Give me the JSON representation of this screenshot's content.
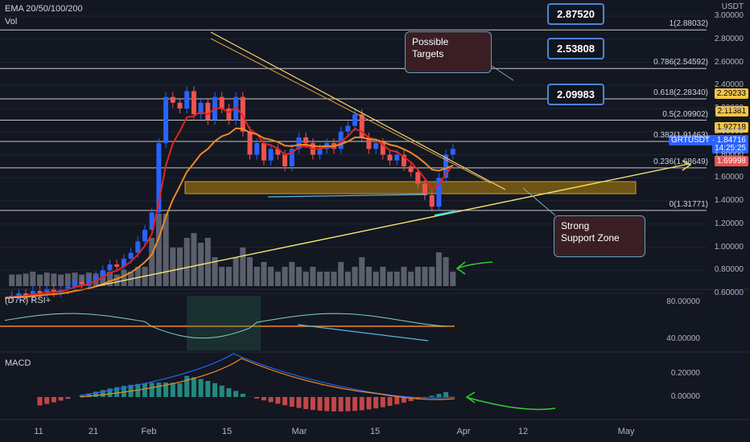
{
  "chart_data": [
    {
      "type": "candlestick",
      "pair": "GRTUSDT",
      "indicator_labels": [
        "EMA 20/50/100/200",
        "Vol"
      ],
      "price_unit": "USDT",
      "price_axis_ticks": [
        "3.00000",
        "2.80000",
        "2.60000",
        "2.40000",
        "2.20000",
        "2.00000",
        "1.80000",
        "1.60000",
        "1.40000",
        "1.20000",
        "1.00000",
        "0.80000",
        "0.60000"
      ],
      "x_axis_ticks": [
        "11",
        "21",
        "Feb",
        "15",
        "Mar",
        "15",
        "Apr",
        "12",
        "May"
      ],
      "fib_levels": [
        {
          "label": "1(2.88032)",
          "value": 2.88032
        },
        {
          "label": "0.786(2.54592)",
          "value": 2.54592
        },
        {
          "label": "0.618(2.28340)",
          "value": 2.2834
        },
        {
          "label": "0.5(2.09902)",
          "value": 2.09902
        },
        {
          "label": "0.382(1.91463)",
          "value": 1.91463
        },
        {
          "label": "0.236(1.68649)",
          "value": 1.68649
        },
        {
          "label": "0(1.31771)",
          "value": 1.31771
        }
      ],
      "targets": [
        "2.87520",
        "2.53808",
        "2.09983"
      ],
      "price_tags": [
        {
          "text": "2.29233",
          "color": "#f5c542"
        },
        {
          "text": "2.11381",
          "color": "#f5c542"
        },
        {
          "text": "1.92718",
          "color": "#f5c542"
        },
        {
          "text": "GRTUSDT · 1.84716",
          "color": "#2962ff"
        },
        {
          "text": "14:25:25",
          "color": "#2962ff"
        },
        {
          "text": "1.69998",
          "color": "#ef5350"
        }
      ],
      "annotations": [
        "Possible\nTargets",
        "Strong\nSupport Zone"
      ],
      "closes": [
        0.56,
        0.58,
        0.6,
        0.57,
        0.62,
        0.6,
        0.64,
        0.61,
        0.63,
        0.66,
        0.7,
        0.68,
        0.72,
        0.75,
        0.8,
        0.85,
        0.83,
        0.9,
        0.95,
        1.05,
        1.15,
        1.3,
        1.9,
        2.3,
        2.25,
        2.2,
        2.35,
        2.15,
        2.25,
        2.1,
        2.3,
        2.2,
        2.1,
        2.3,
        2.0,
        1.8,
        1.9,
        1.75,
        1.85,
        1.8,
        1.7,
        1.85,
        1.95,
        1.9,
        1.8,
        1.85,
        1.9,
        1.85,
        2.0,
        2.05,
        2.15,
        1.95,
        1.85,
        1.9,
        1.8,
        1.75,
        1.8,
        1.7,
        1.65,
        1.55,
        1.45,
        1.35,
        1.6,
        1.8,
        1.85
      ]
    },
    {
      "type": "line",
      "title": "(D7R) RSI+",
      "y_axis_ticks": [
        "80.00000",
        "40.00000"
      ]
    },
    {
      "type": "histogram",
      "title": "MACD",
      "y_axis_ticks": [
        "0.20000",
        "0.00000"
      ]
    }
  ]
}
